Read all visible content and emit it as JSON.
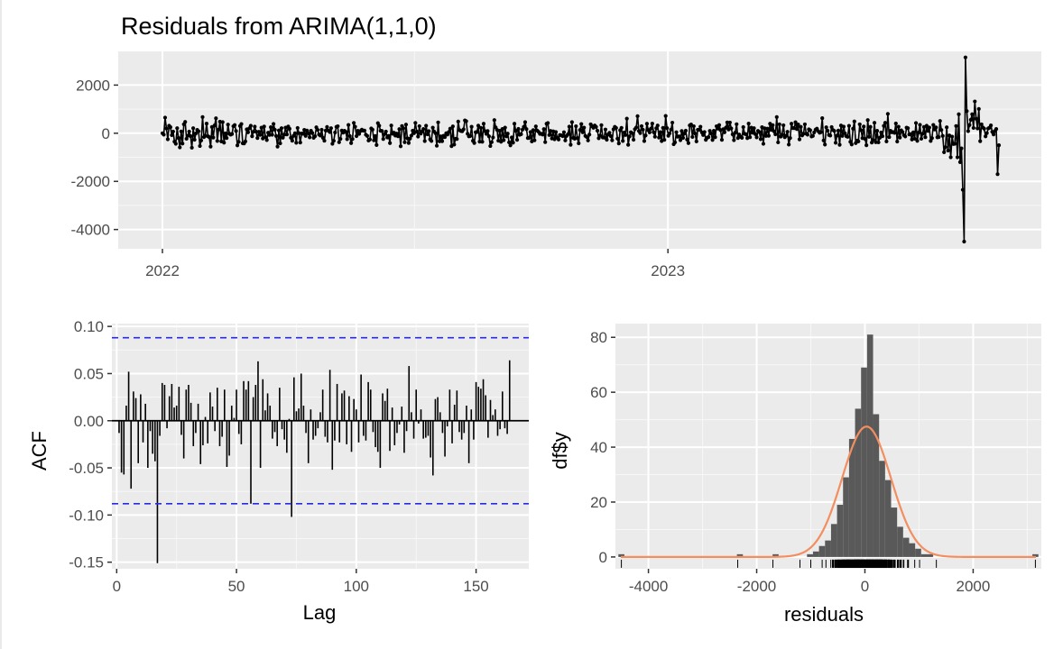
{
  "chart_data": [
    {
      "type": "line",
      "title": "Residuals from ARIMA(1,1,0)",
      "xlabel": "",
      "ylabel": "",
      "x_tick_labels": [
        "2022",
        "2023"
      ],
      "x_range": [
        "2022-01-01",
        "2023-08-28"
      ],
      "ylim": [
        -4800,
        3400
      ],
      "y_ticks": [
        -4000,
        -2000,
        0,
        2000
      ],
      "y_tick_labels": [
        "-4000",
        "-2000",
        "0",
        "2000"
      ],
      "grid": true,
      "markers": true,
      "series": [
        {
          "values": [
            0,
            -60,
            650,
            200,
            -250,
            310,
            250,
            -80,
            70,
            -350,
            -440,
            210,
            -200,
            -590,
            75,
            -430,
            370,
            470,
            -230,
            -100,
            70,
            -120,
            -600,
            210,
            -270,
            -10,
            140,
            80,
            -530,
            -300,
            670,
            -160,
            -110,
            400,
            -125,
            -160,
            -555,
            260,
            -180,
            325,
            620,
            -320,
            150,
            480,
            -340,
            460,
            -390,
            -5,
            -200,
            360,
            -20,
            -60,
            -30,
            290,
            340,
            90,
            -505,
            -360,
            300,
            380,
            -420,
            -425,
            -340,
            160,
            40,
            210,
            310,
            -125,
            60,
            275,
            65,
            -200,
            60,
            -70,
            230,
            -220,
            280,
            -160,
            -285,
            20,
            -70,
            250,
            -65,
            385,
            145,
            -115,
            -555,
            115,
            -420,
            210,
            -185,
            -60,
            230,
            -50,
            280,
            185,
            -190,
            -310,
            -105,
            0,
            -395,
            220,
            0,
            -385,
            -10,
            -20,
            140,
            -110,
            110,
            -5,
            -170,
            100,
            10,
            -190,
            -125,
            245,
            140,
            -55,
            -95,
            145,
            -195,
            -310,
            110,
            260,
            105,
            50,
            210,
            -440,
            -315,
            30,
            265,
            290,
            -375,
            -235,
            110,
            25,
            100,
            55,
            -245,
            345,
            -120,
            -410,
            -240,
            430,
            270,
            -120,
            100,
            -25,
            90,
            150,
            105,
            110,
            -60,
            -110,
            -305,
            -260,
            200,
            150,
            -295,
            -115,
            -490,
            420,
            310,
            100,
            95,
            -240,
            -35,
            70,
            -175,
            -110,
            -410,
            320,
            -20,
            20,
            -95,
            -15,
            -125,
            170,
            -540,
            300,
            210,
            -375,
            360,
            -210,
            -405,
            -225,
            -100,
            105,
            0,
            430,
            70,
            -140,
            295,
            -15,
            70,
            175,
            -325,
            310,
            -45,
            85,
            -255,
            -320,
            230,
            75,
            0,
            -520,
            450,
            -335,
            -135,
            -330,
            -105,
            -160,
            0,
            -55,
            55,
            190,
            -535,
            285,
            -470,
            -230,
            -240,
            485,
            130,
            90,
            80,
            160,
            530,
            500,
            -20,
            -130,
            -115,
            270,
            -315,
            -405,
            40,
            50,
            315,
            -350,
            225,
            -355,
            395,
            85,
            -25,
            90,
            -130,
            -530,
            -370,
            -175,
            545,
            240,
            140,
            -310,
            100,
            -355,
            175,
            -290,
            230,
            -130,
            -15,
            -380,
            -505,
            -175,
            -390,
            395,
            100,
            -275,
            180,
            -65,
            -40,
            150,
            265,
            460,
            170,
            -200,
            -195,
            50,
            -340,
            130,
            -295,
            285,
            110,
            60,
            -25,
            -20,
            -55,
            170,
            -370,
            395,
            425,
            -75,
            95,
            -220,
            80,
            -250,
            50,
            -180,
            -260,
            -70,
            -85,
            -120,
            40,
            -300,
            -110,
            -40,
            275,
            -480,
            460,
            -195,
            -230,
            290,
            -200,
            -420,
            135,
            380,
            40,
            230,
            -110,
            -155,
            -300,
            -55,
            370,
            290,
            225,
            320,
            265,
            105,
            -210,
            -100,
            335,
            -175,
            -180,
            155,
            -270,
            -55,
            15,
            -120,
            -295,
            160,
            265,
            220,
            -225,
            -425,
            125,
            225,
            -320,
            30,
            -75,
            605,
            -480,
            -135,
            40,
            0,
            -270,
            165,
            235,
            710,
            90,
            5,
            295,
            145,
            -325,
            -90,
            395,
            130,
            35,
            190,
            400,
            45,
            -145,
            210,
            320,
            -180,
            45,
            -325,
            225,
            -275,
            720,
            215,
            -105,
            -5,
            150,
            440,
            -455,
            -380,
            40,
            -145,
            -130,
            -290,
            90,
            -195,
            -10,
            105,
            -265,
            -410,
            325,
            365,
            -155,
            290,
            -10,
            -340,
            145,
            140,
            270,
            35,
            -75,
            50,
            -275,
            -190,
            -160,
            95,
            -10,
            -280,
            100,
            -165,
            290,
            195,
            340,
            130,
            -275,
            165,
            40,
            230,
            450,
            155,
            445,
            200,
            -45,
            -290,
            25,
            375,
            -200,
            -55,
            -150,
            -190,
            255,
            -25,
            -40,
            -205,
            400,
            -165,
            230,
            20,
            210,
            -35,
            -170,
            95,
            50,
            -245,
            250,
            -440,
            205,
            -110,
            190,
            -105,
            395,
            135,
            335,
            75,
            -45,
            670,
            -380,
            370,
            -140,
            -65,
            330,
            -165,
            -100,
            60,
            -470,
            -200,
            395,
            215,
            210,
            455,
            175,
            365,
            -255,
            265,
            -90,
            -20,
            370,
            -15,
            -60,
            160,
            125,
            -135,
            -110,
            35,
            150,
            190,
            85,
            20,
            45,
            625,
            -300,
            -470,
            245,
            105,
            -75,
            -95,
            255,
            135,
            95,
            -395,
            -100,
            110,
            -480,
            320,
            -110,
            275,
            -5,
            -125,
            -150,
            305,
            -360,
            -465,
            190,
            490,
            -410,
            -305,
            -340,
            370,
            125,
            -205,
            280,
            -235,
            -500,
            545,
            -150,
            265,
            -385,
            -280,
            435,
            -375,
            100,
            -380,
            -190,
            30,
            -125,
            305,
            435,
            -340,
            805,
            -160,
            100,
            40,
            50,
            15,
            405,
            -345,
            270,
            -180,
            120,
            50,
            -80,
            -135,
            230,
            210,
            -50,
            -35,
            -260,
            35,
            -230,
            425,
            -315,
            25,
            350,
            -230,
            -20,
            260,
            -165,
            310,
            95,
            235,
            -320,
            -205,
            345,
            155,
            240,
            -170,
            -160,
            510,
            135,
            -110,
            -790,
            -580,
            245,
            -720,
            -90,
            -1000,
            -140,
            -450,
            -440,
            300,
            -1000,
            790,
            -1200,
            -630,
            -2350,
            -4500,
            3150,
            920,
            85,
            340,
            560,
            790,
            220,
            1320,
            600,
            200,
            1010,
            -330,
            370,
            240,
            190,
            -130,
            5,
            200,
            230,
            325,
            55,
            -50,
            90,
            175,
            -1700,
            -500
          ]
        }
      ]
    },
    {
      "type": "bar",
      "title": "",
      "xlabel": "Lag",
      "ylabel": "ACF",
      "xlim": [
        -2,
        172
      ],
      "ylim": [
        -0.157,
        0.103
      ],
      "x_ticks": [
        0,
        50,
        100,
        150
      ],
      "x_tick_labels": [
        "0",
        "50",
        "100",
        "150"
      ],
      "y_ticks": [
        -0.15,
        -0.1,
        -0.05,
        0.0,
        0.05,
        0.1
      ],
      "y_tick_labels": [
        "-0.15",
        "-0.10",
        "-0.05",
        "0.00",
        "0.05",
        "0.10"
      ],
      "confidence_bound": 0.088,
      "grid": true,
      "series": [
        {
          "values": [
            -0.013,
            -0.055,
            -0.057,
            0.016,
            0.052,
            -0.072,
            0.031,
            0.024,
            -0.045,
            0.028,
            -0.023,
            0.018,
            -0.05,
            -0.011,
            -0.035,
            -0.043,
            -0.151,
            -0.016,
            0.04,
            0.038,
            -0.008,
            0.026,
            0.039,
            0.014,
            0.016,
            0.036,
            -0.015,
            -0.04,
            0.033,
            0.038,
            0.019,
            -0.027,
            -0.013,
            0.018,
            -0.046,
            -0.026,
            0.004,
            -0.024,
            0.03,
            0.015,
            -0.011,
            0.035,
            -0.027,
            -0.017,
            0.033,
            -0.049,
            -0.037,
            0.016,
            0.003,
            0.033,
            -0.014,
            -0.025,
            0.042,
            0.033,
            0.042,
            -0.088,
            0.025,
            0.038,
            0.063,
            -0.05,
            0.044,
            0.011,
            0.029,
            0.016,
            -0.019,
            -0.012,
            -0.027,
            0.035,
            -0.009,
            -0.02,
            -0.034,
            0.002,
            -0.102,
            0.046,
            0.01,
            0.013,
            0.05,
            0.016,
            -0.013,
            -0.045,
            0.012,
            -0.02,
            -0.016,
            -0.008,
            0.009,
            0.033,
            -0.017,
            -0.023,
            0.054,
            -0.052,
            -0.021,
            0.039,
            -0.023,
            0.029,
            0.032,
            -0.025,
            0.026,
            -0.033,
            0.023,
            0.012,
            -0.023,
            0.049,
            -0.016,
            -0.021,
            0.041,
            0.033,
            -0.012,
            -0.028,
            -0.033,
            -0.05,
            0.029,
            0.021,
            0.034,
            -0.032,
            0.014,
            -0.026,
            -0.013,
            -0.004,
            0.015,
            -0.034,
            -0.011,
            0.058,
            0.009,
            -0.019,
            0.033,
            -0.003,
            0.012,
            -0.019,
            -0.018,
            -0.016,
            -0.039,
            -0.058,
            0.023,
            0.025,
            0.009,
            -0.013,
            -0.038,
            -0.006,
            0.033,
            -0.024,
            0.017,
            0.032,
            -0.012,
            -0.02,
            -0.013,
            0.016,
            -0.045,
            0.012,
            -0.02,
            0.041,
            0.036,
            0.034,
            0.044,
            0.027,
            -0.018,
            0.022,
            0.006,
            0.012,
            -0.016,
            -0.009,
            0.031,
            -0.008,
            -0.014,
            0.064
          ]
        }
      ]
    },
    {
      "type": "bar",
      "title": "",
      "xlabel": "residuals",
      "ylabel": "df$y",
      "xlim": [
        -4610,
        3260
      ],
      "ylim": [
        -4.3,
        85
      ],
      "x_ticks": [
        -4000,
        -2000,
        0,
        2000
      ],
      "x_tick_labels": [
        "-4000",
        "-2000",
        "0",
        "2000"
      ],
      "y_ticks": [
        0,
        20,
        40,
        60,
        80
      ],
      "y_tick_labels": [
        "0",
        "20",
        "40",
        "60",
        "80"
      ],
      "grid": true,
      "bin_width": 111,
      "bin_starts": [
        -1070,
        -959,
        -848,
        -737,
        -626,
        -515,
        -404,
        -293,
        -182,
        -71,
        40,
        151,
        262,
        373,
        484,
        595,
        706,
        817,
        928,
        1039,
        1150
      ],
      "series": [
        {
          "name": "histogram",
          "values": [
            1,
            2,
            4,
            6,
            12,
            19,
            29,
            43,
            54,
            69,
            81,
            52,
            35,
            28,
            18,
            11,
            7,
            5,
            3,
            1,
            1
          ],
          "outliers": [
            {
              "x": -4500,
              "count": 1
            },
            {
              "x": -2310,
              "count": 1
            },
            {
              "x": -1650,
              "count": 1
            },
            {
              "x": 3150,
              "count": 1
            }
          ]
        },
        {
          "name": "normal-density",
          "peak": 47.5,
          "mean": 30,
          "sd": 450
        }
      ]
    }
  ]
}
